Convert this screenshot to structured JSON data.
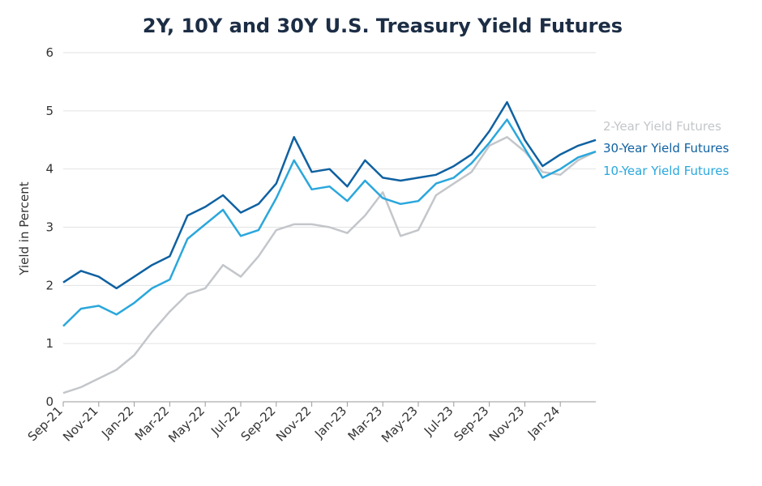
{
  "chart_data": {
    "type": "line",
    "title": "2Y, 10Y and 30Y U.S. Treasury Yield Futures",
    "ylabel": "Yield in Percent",
    "xlabel": "",
    "ylim": [
      0,
      6
    ],
    "yticks": [
      0,
      1,
      2,
      3,
      4,
      5,
      6
    ],
    "xlim": [
      "2021-09",
      "2024-03"
    ],
    "grid": true,
    "legend": "right",
    "xticks": [
      "Sep-21",
      "Nov-21",
      "Jan-22",
      "Mar-22",
      "May-22",
      "Jul-22",
      "Sep-22",
      "Nov-22",
      "Jan-23",
      "Mar-23",
      "May-23",
      "Jul-23",
      "Sep-23",
      "Nov-23",
      "Jan-24"
    ],
    "x": [
      "2021-09",
      "2021-10",
      "2021-11",
      "2021-12",
      "2022-01",
      "2022-02",
      "2022-03",
      "2022-04",
      "2022-05",
      "2022-06",
      "2022-07",
      "2022-08",
      "2022-09",
      "2022-10",
      "2022-11",
      "2022-12",
      "2023-01",
      "2023-02",
      "2023-03",
      "2023-04",
      "2023-05",
      "2023-06",
      "2023-07",
      "2023-08",
      "2023-09",
      "2023-10",
      "2023-11",
      "2023-12",
      "2024-01",
      "2024-02",
      "2024-03"
    ],
    "series": [
      {
        "name": "2-Year Yield Futures",
        "color": "#c3c6ca",
        "values": [
          0.15,
          0.25,
          0.4,
          0.55,
          0.8,
          1.2,
          1.55,
          1.85,
          1.95,
          2.35,
          2.15,
          2.5,
          2.95,
          3.05,
          3.05,
          3.0,
          2.9,
          3.2,
          3.6,
          2.85,
          2.95,
          3.55,
          3.75,
          3.95,
          4.4,
          4.55,
          4.3,
          3.95,
          3.9,
          4.15,
          4.3
        ]
      },
      {
        "name": "30-Year Yield Futures",
        "color": "#0f61a1",
        "values": [
          2.05,
          2.25,
          2.15,
          1.95,
          2.15,
          2.35,
          2.5,
          3.2,
          3.35,
          3.55,
          3.25,
          3.4,
          3.75,
          4.55,
          3.95,
          4.0,
          3.7,
          4.15,
          3.85,
          3.8,
          3.85,
          3.9,
          4.05,
          4.25,
          4.65,
          5.15,
          4.5,
          4.05,
          4.25,
          4.4,
          4.5
        ]
      },
      {
        "name": "10-Year Yield Futures",
        "color": "#2aa7dc",
        "values": [
          1.3,
          1.6,
          1.65,
          1.5,
          1.7,
          1.95,
          2.1,
          2.8,
          3.05,
          3.3,
          2.85,
          2.95,
          3.5,
          4.15,
          3.65,
          3.7,
          3.45,
          3.8,
          3.5,
          3.4,
          3.45,
          3.75,
          3.85,
          4.1,
          4.45,
          4.85,
          4.35,
          3.85,
          4.0,
          4.2,
          4.3
        ]
      }
    ]
  }
}
